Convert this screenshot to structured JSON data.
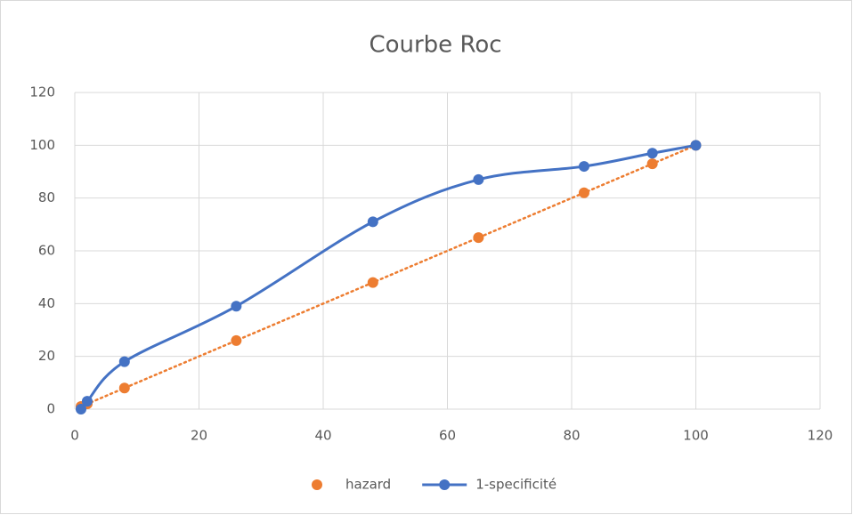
{
  "chart_data": {
    "type": "scatter",
    "title": "Courbe Roc",
    "series": [
      {
        "name": "hazard",
        "color": "#ed7d31",
        "line": "none",
        "trendline": "linear",
        "x": [
          1,
          2,
          8,
          26,
          48,
          65,
          82,
          93,
          100
        ],
        "values": [
          1,
          2,
          8,
          26,
          48,
          65,
          82,
          93,
          100
        ]
      },
      {
        "name": "1-specificité",
        "color": "#4472c4",
        "line": "smooth",
        "trendline": "none",
        "x": [
          1,
          2,
          8,
          26,
          48,
          65,
          82,
          93,
          100
        ],
        "values": [
          0,
          3,
          18,
          39,
          71,
          87,
          92,
          97,
          100
        ]
      }
    ],
    "xlim": [
      0,
      120
    ],
    "xticks": [
      0,
      20,
      40,
      60,
      80,
      100,
      120
    ],
    "ylim": [
      0,
      120
    ],
    "yticks": [
      0,
      20,
      40,
      60,
      80,
      100,
      120
    ],
    "grid": true,
    "legend": "bottom"
  }
}
